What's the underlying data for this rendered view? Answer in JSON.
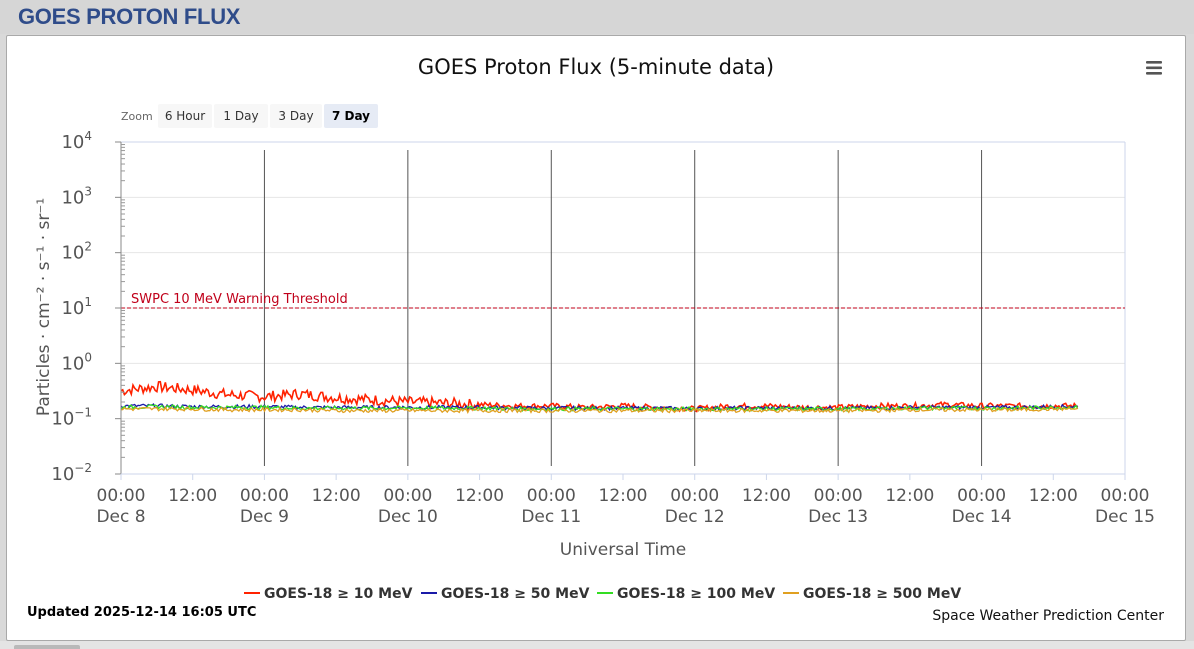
{
  "page": {
    "title": "GOES PROTON FLUX"
  },
  "chart_data": {
    "type": "line",
    "title": "GOES Proton Flux (5-minute data)",
    "ylabel": "Particles · cm⁻² · s⁻¹ · sr⁻¹",
    "xlabel": "Universal Time",
    "y_scale": "log",
    "ylim": [
      0.01,
      10000
    ],
    "y_ticks": [
      {
        "base": "10",
        "exp": "4"
      },
      {
        "base": "10",
        "exp": "3"
      },
      {
        "base": "10",
        "exp": "2"
      },
      {
        "base": "10",
        "exp": "1"
      },
      {
        "base": "10",
        "exp": "0"
      },
      {
        "base": "10",
        "exp": "−1"
      },
      {
        "base": "10",
        "exp": "−2"
      }
    ],
    "xlim": [
      "2025-12-08 00:00",
      "2025-12-15 00:00"
    ],
    "x_ticks": [
      {
        "time": "00:00",
        "date": "Dec 8"
      },
      {
        "time": "12:00",
        "date": ""
      },
      {
        "time": "00:00",
        "date": "Dec 9"
      },
      {
        "time": "12:00",
        "date": ""
      },
      {
        "time": "00:00",
        "date": "Dec 10"
      },
      {
        "time": "12:00",
        "date": ""
      },
      {
        "time": "00:00",
        "date": "Dec 11"
      },
      {
        "time": "12:00",
        "date": ""
      },
      {
        "time": "00:00",
        "date": "Dec 12"
      },
      {
        "time": "12:00",
        "date": ""
      },
      {
        "time": "00:00",
        "date": "Dec 13"
      },
      {
        "time": "12:00",
        "date": ""
      },
      {
        "time": "00:00",
        "date": "Dec 14"
      },
      {
        "time": "12:00",
        "date": ""
      },
      {
        "time": "00:00",
        "date": "Dec 15"
      }
    ],
    "threshold": {
      "label": "SWPC 10 MeV Warning Threshold",
      "value": 10,
      "color": "#c0001a"
    },
    "zoom": {
      "label": "Zoom",
      "options": [
        "6 Hour",
        "1 Day",
        "3 Day",
        "7 Day"
      ],
      "selected": "7 Day"
    },
    "x_day_offsets": [
      0,
      0.25,
      0.5,
      0.75,
      1,
      1.25,
      1.5,
      1.75,
      2,
      2.25,
      2.5,
      2.75,
      3,
      3.25,
      3.5,
      3.75,
      4,
      4.25,
      4.5,
      4.75,
      5,
      5.25,
      5.5,
      5.75,
      6,
      6.25,
      6.5,
      6.67
    ],
    "series": [
      {
        "name": "GOES-18 ≥ 10 MeV",
        "color": "#ff2200",
        "values": [
          0.32,
          0.38,
          0.33,
          0.27,
          0.25,
          0.28,
          0.24,
          0.22,
          0.2,
          0.19,
          0.18,
          0.17,
          0.17,
          0.16,
          0.17,
          0.16,
          0.15,
          0.17,
          0.17,
          0.16,
          0.16,
          0.17,
          0.17,
          0.18,
          0.17,
          0.17,
          0.17,
          0.17
        ]
      },
      {
        "name": "GOES-18 ≥ 50 MeV",
        "color": "#1a1aa8",
        "values": [
          0.17,
          0.17,
          0.165,
          0.165,
          0.165,
          0.16,
          0.16,
          0.16,
          0.16,
          0.16,
          0.16,
          0.155,
          0.155,
          0.155,
          0.155,
          0.155,
          0.15,
          0.155,
          0.155,
          0.155,
          0.155,
          0.155,
          0.16,
          0.16,
          0.16,
          0.16,
          0.165,
          0.165
        ]
      },
      {
        "name": "GOES-18 ≥ 100 MeV",
        "color": "#33dd22",
        "values": [
          0.16,
          0.165,
          0.16,
          0.16,
          0.16,
          0.155,
          0.155,
          0.155,
          0.155,
          0.155,
          0.155,
          0.15,
          0.15,
          0.15,
          0.15,
          0.15,
          0.15,
          0.15,
          0.15,
          0.15,
          0.15,
          0.15,
          0.155,
          0.155,
          0.155,
          0.155,
          0.16,
          0.16
        ]
      },
      {
        "name": "GOES-18 ≥ 500 MeV",
        "color": "#e0a020",
        "values": [
          0.15,
          0.15,
          0.15,
          0.145,
          0.145,
          0.145,
          0.14,
          0.14,
          0.14,
          0.14,
          0.14,
          0.14,
          0.14,
          0.14,
          0.14,
          0.14,
          0.14,
          0.14,
          0.14,
          0.14,
          0.14,
          0.14,
          0.145,
          0.145,
          0.145,
          0.145,
          0.15,
          0.15
        ]
      }
    ],
    "updated": "Updated 2025-12-14 16:05 UTC",
    "credit": "Space Weather Prediction Center",
    "menu_icon": "hamburger-icon"
  }
}
